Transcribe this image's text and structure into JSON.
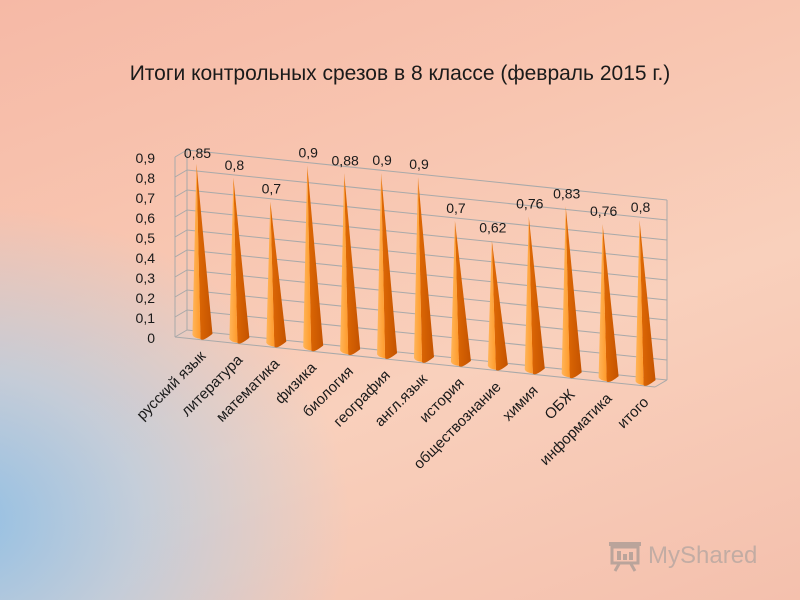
{
  "chart_data": {
    "type": "bar",
    "title": "Итоги контрольных срезов в  8 классе (февраль 2015 г.)",
    "categories": [
      "русский язык",
      "литература",
      "математика",
      "физика",
      "биология",
      "география",
      "англ.язык",
      "история",
      "обществознание",
      "химия",
      "ОБЖ",
      "информатика",
      "итого"
    ],
    "values": [
      0.85,
      0.8,
      0.7,
      0.9,
      0.88,
      0.9,
      0.9,
      0.7,
      0.62,
      0.76,
      0.83,
      0.76,
      0.8
    ],
    "value_labels": [
      "0,85",
      "0,8",
      "0,7",
      "0,9",
      "0,88",
      "0,9",
      "0,9",
      "0,7",
      "0,62",
      "0,76",
      "0,83",
      "0,76",
      "0,8"
    ],
    "y_ticks": [
      "0",
      "0,1",
      "0,2",
      "0,3",
      "0,4",
      "0,5",
      "0,6",
      "0,7",
      "0,8",
      "0,9"
    ],
    "ylim": [
      0,
      0.9
    ],
    "grid": true,
    "bar_shape": "cone",
    "colors": {
      "bar_light": "#ffa640",
      "bar_dark": "#d65f00",
      "grid": "#a9a9a9"
    }
  },
  "watermark": {
    "text": "MyShared",
    "icon": "presentation-board-icon"
  }
}
